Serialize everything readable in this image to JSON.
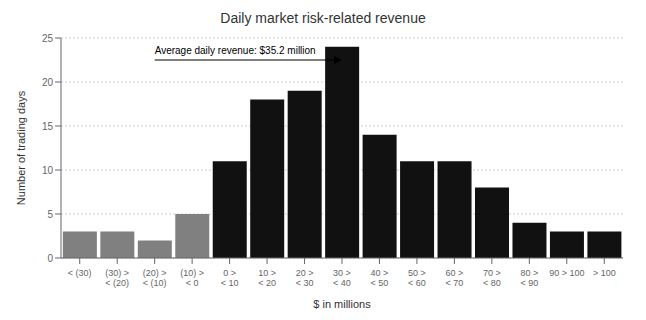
{
  "chart_data": {
    "type": "bar",
    "title": "Daily market risk-related revenue",
    "xlabel": "$ in millions",
    "ylabel": "Number of trading days",
    "categories": [
      "< (30)",
      "(30) >\n< (20)",
      "(20) >\n< (10)",
      "(10) >\n< 0",
      "0 >\n< 10",
      "10 >\n< 20",
      "20 >\n< 30",
      "30 >\n< 40",
      "40 >\n< 50",
      "50 >\n< 60",
      "60 >\n< 70",
      "70 >\n< 80",
      "80 >\n< 90",
      "90 > 100",
      "> 100"
    ],
    "values": [
      3,
      3,
      2,
      5,
      11,
      18,
      19,
      24,
      14,
      11,
      11,
      8,
      4,
      3,
      3
    ],
    "colors": [
      "#808080",
      "#808080",
      "#808080",
      "#808080",
      "#111111",
      "#111111",
      "#111111",
      "#111111",
      "#111111",
      "#111111",
      "#111111",
      "#111111",
      "#111111",
      "#111111",
      "#111111"
    ],
    "ylim": [
      0,
      25
    ],
    "yticks": [
      0,
      5,
      10,
      15,
      20,
      25
    ],
    "grid": true,
    "annotation": "Average daily revenue: $35.2 million"
  }
}
